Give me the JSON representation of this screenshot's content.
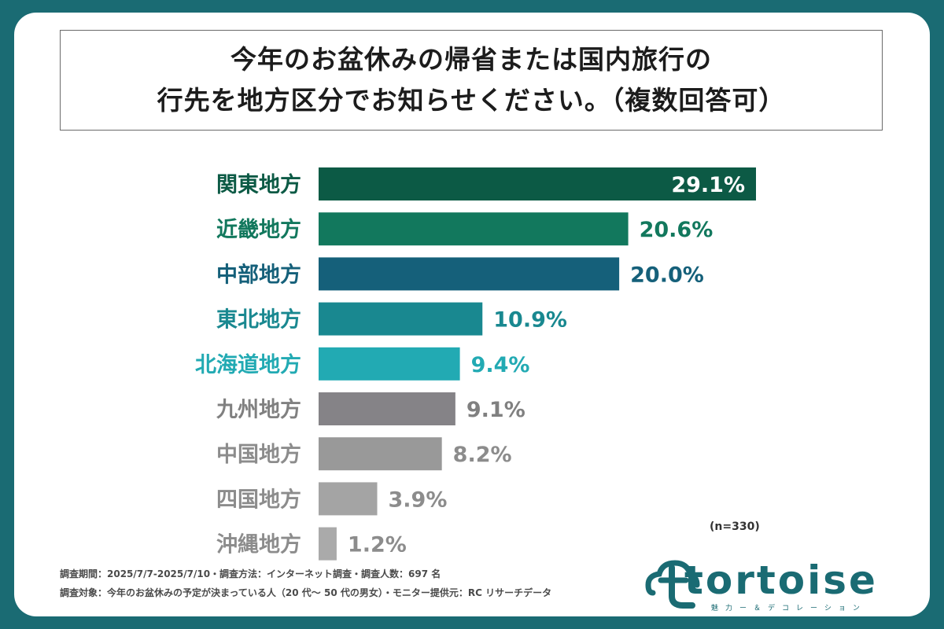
{
  "title": {
    "line1": "今年のお盆休みの帰省または国内旅行の",
    "line2": "行先を地方区分でお知らせください。（複数回答可）"
  },
  "chart_data": {
    "type": "bar",
    "orientation": "horizontal",
    "categories": [
      "関東地方",
      "近畿地方",
      "中部地方",
      "東北地方",
      "北海道地方",
      "九州地方",
      "中国地方",
      "四国地方",
      "沖縄地方"
    ],
    "values": [
      29.1,
      20.6,
      20.0,
      10.9,
      9.4,
      9.1,
      8.2,
      3.9,
      1.2
    ],
    "value_labels": [
      "29.1%",
      "20.6%",
      "20.0%",
      "10.9%",
      "9.4%",
      "9.1%",
      "8.2%",
      "3.9%",
      "1.2%"
    ],
    "bar_colors": [
      "#0c5a45",
      "#12785d",
      "#15607a",
      "#198890",
      "#22aab3",
      "#858387",
      "#999999",
      "#a4a4a4",
      "#aaaaaa"
    ],
    "label_colors": [
      "#0c5a45",
      "#12785d",
      "#15607a",
      "#198890",
      "#22aab3",
      "#808080",
      "#8c8c8c",
      "#8c8c8c",
      "#8c8c8c"
    ],
    "xlim": [
      0,
      29.1
    ],
    "n_note": "(n=330)"
  },
  "footnotes": {
    "line1": "調査期間：2025/7/7-2025/7/10・調査方法：インターネット調査・調査人数：697 名",
    "line2": "調査対象：今年のお盆休みの予定が決まっている人（20 代～ 50 代の男女）・モニター提供元：RC リサーチデータ"
  },
  "logo": {
    "name": "tortoise",
    "tagline": "魅力ー＆デコレーション"
  }
}
